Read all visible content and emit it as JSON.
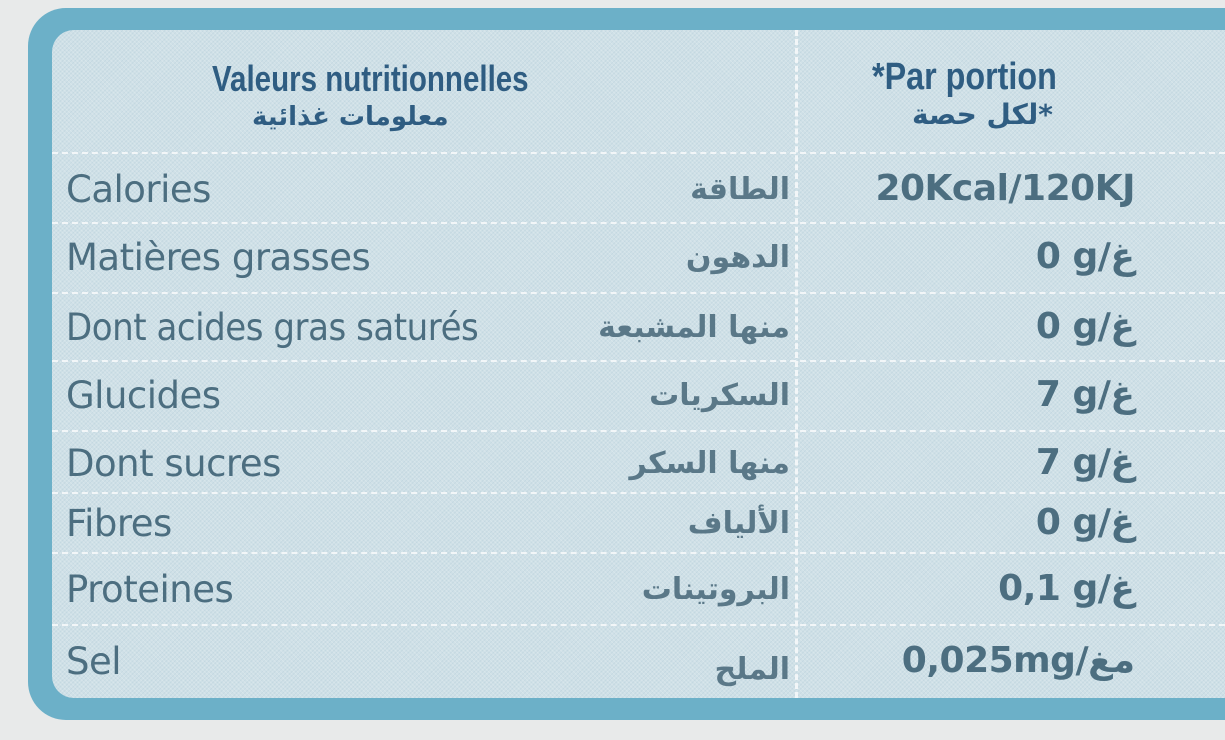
{
  "header": {
    "col1_fr": "Valeurs nutritionnelles",
    "col1_ar": "معلومات غذائية",
    "col2_fr": "*Par portion",
    "col2_ar": "*لكل حصة"
  },
  "rows": [
    {
      "fr": "Calories",
      "ar": "الطاقة",
      "value": "20Kcal/120KJ"
    },
    {
      "fr": "Matières grasses",
      "ar": "الدهون",
      "value": "0 g/غ"
    },
    {
      "fr": "Dont acides gras saturés",
      "ar": "منها المشبعة",
      "value": "0 g/غ"
    },
    {
      "fr": "Glucides",
      "ar": "السكريات",
      "value": "7 g/غ"
    },
    {
      "fr": "Dont sucres",
      "ar": "منها السكر",
      "value": "7 g/غ"
    },
    {
      "fr": "Fibres",
      "ar": "الألياف",
      "value": "0 g/غ"
    },
    {
      "fr": "Proteines",
      "ar": "البروتينات",
      "value": "0,1 g/غ"
    },
    {
      "fr": "Sel",
      "ar": "الملح",
      "value": "0,025mg/مغ"
    }
  ],
  "colors": {
    "border": "#6cb0c8",
    "table_bg": "#cfe0e7",
    "header_text": "#2f5d82",
    "body_text": "#4c6e80"
  }
}
